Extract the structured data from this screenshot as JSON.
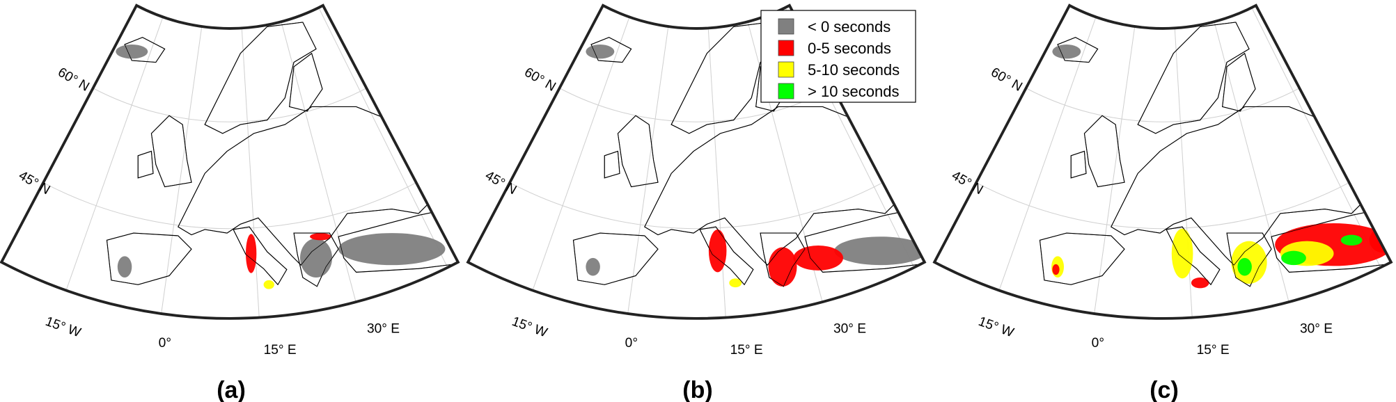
{
  "panels": [
    {
      "label": "(a)"
    },
    {
      "label": "(b)"
    },
    {
      "label": "(c)"
    }
  ],
  "graticule_labels": [
    "60° N",
    "45° N",
    "15° W",
    "0°",
    "15° E",
    "30° E"
  ],
  "legend": [
    {
      "label": "< 0 seconds",
      "color": "#808080"
    },
    {
      "label": "0-5 seconds",
      "color": "#ff0000"
    },
    {
      "label": "5-10 seconds",
      "color": "#ffff00"
    },
    {
      "label": "> 10 seconds",
      "color": "#00ff00"
    }
  ]
}
